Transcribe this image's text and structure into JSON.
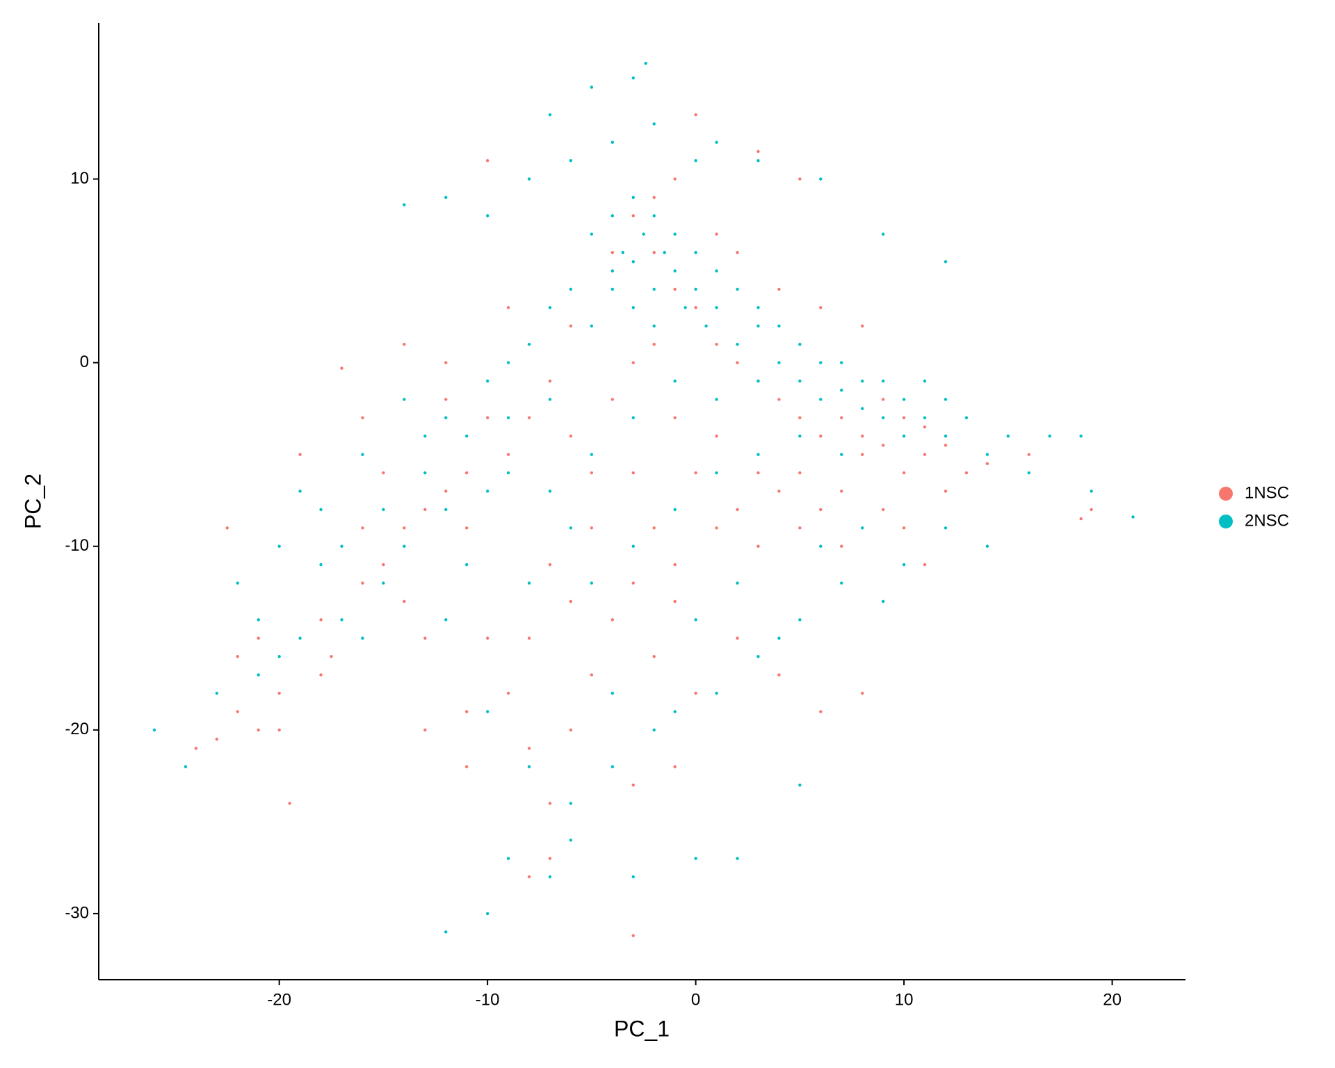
{
  "chart_data": {
    "type": "scatter",
    "x_label": "PC_1",
    "y_label": "PC_2",
    "legend": "right",
    "xlim": [
      -28.67,
      23.52
    ],
    "ylim": [
      -33.6,
      18.5
    ],
    "xticks": [
      -20,
      -10,
      0,
      10,
      20
    ],
    "yticks": [
      -30,
      -20,
      -10,
      0,
      10
    ],
    "series": [
      {
        "name": "1NSC",
        "color": "#F8766D",
        "x": [
          -24,
          -22.5,
          -22,
          -21,
          -20,
          -19.5,
          -19,
          -18,
          -17.5,
          -17,
          -16,
          -15,
          -14,
          -13,
          -12,
          -11,
          -10,
          -9,
          -8,
          -7,
          -8,
          -7,
          -3,
          -5,
          -4,
          -3,
          -2,
          -1,
          0,
          1,
          2,
          3,
          4,
          5,
          6,
          7,
          8,
          9,
          10,
          11,
          12,
          13,
          14,
          15,
          16,
          19,
          18.5,
          -10,
          -5,
          0,
          3,
          5,
          -3,
          -2,
          -4,
          -1,
          0,
          1,
          2,
          3,
          4,
          5,
          6,
          7,
          8,
          9,
          10,
          11,
          12,
          -6,
          -7,
          -8,
          -9,
          -10,
          -11,
          -12,
          -13,
          -14,
          -15,
          -16,
          -18,
          -20,
          -21,
          -22,
          -23,
          -6,
          -5,
          -4,
          -3,
          -2,
          -1,
          1,
          3,
          5,
          7,
          9,
          10,
          11,
          -6,
          -8,
          -2,
          0,
          2,
          4,
          6,
          8,
          -1,
          -3,
          -11,
          -6,
          -4,
          -2,
          -1,
          1,
          2,
          4,
          6,
          8,
          -9,
          -12,
          -14,
          -16,
          -13,
          -11,
          -7,
          -5,
          -3,
          -1
        ],
        "values": [
          -21,
          -9,
          -16,
          -20,
          -18,
          -24,
          -5,
          -14,
          -16,
          -0.3,
          -9,
          -6,
          -13,
          -20,
          -2,
          -9,
          -15,
          -18,
          -21,
          -24,
          -28,
          -27,
          -31.2,
          -17,
          -14,
          -12,
          -9,
          -11,
          -6,
          -9,
          -8,
          -10,
          -7,
          -6,
          -8,
          -7,
          -5,
          -4.5,
          -6,
          -5,
          -7,
          -6,
          -5.5,
          -4,
          -5,
          -8,
          -8.5,
          11,
          15,
          13.5,
          11.5,
          10,
          8,
          6,
          6,
          4,
          3,
          1,
          0,
          -1,
          -2,
          -3,
          -4,
          -3,
          -4,
          -2,
          -3,
          -3.5,
          -4.5,
          2,
          -1,
          -3,
          -5,
          -3,
          -6,
          -7,
          -8,
          -9,
          -11,
          -12,
          -17,
          -20,
          -15,
          -19,
          -20.5,
          -4,
          -6,
          -2,
          0,
          1,
          -3,
          -4,
          -6,
          -9,
          -10,
          -8,
          -9,
          -11,
          -13,
          -15,
          -16,
          -18,
          -15,
          -17,
          -19,
          -18,
          -22,
          -23,
          -22,
          -20,
          5,
          9,
          10,
          7,
          6,
          4,
          3,
          2,
          3,
          0,
          1,
          -3,
          -15,
          -19,
          -11,
          -9,
          -6,
          -13
        ]
      },
      {
        "name": "2NSC",
        "color": "#00BFC4",
        "x": [
          -26,
          -24.5,
          -22,
          -21,
          -20,
          -19,
          -18,
          -17,
          -16,
          -15,
          -14,
          -13,
          -12,
          -11,
          -10,
          -9,
          -8,
          -7,
          -6,
          -5,
          -4,
          -3.5,
          -3,
          -2.5,
          -2,
          -1.5,
          -1,
          -0.5,
          0,
          0.5,
          1,
          2,
          3,
          4,
          5,
          6,
          7,
          8,
          9,
          10,
          11,
          12,
          13,
          14,
          15,
          16,
          17,
          18.5,
          19,
          21,
          -3,
          -5,
          -2.4,
          -7,
          1,
          3,
          6,
          9,
          12,
          -14,
          -12,
          -10,
          -8,
          -6,
          -4,
          -2,
          0,
          -3,
          -4,
          -5,
          -2,
          -1,
          0,
          1,
          2,
          3,
          4,
          5,
          6,
          7,
          8,
          9,
          10,
          11,
          12,
          -3,
          -2,
          -4,
          -6,
          -7,
          -8,
          -9,
          -10,
          -12,
          -13,
          -15,
          -17,
          -19,
          -21,
          -23,
          -20,
          -18,
          -16,
          -14,
          -12,
          -10,
          -8,
          -6,
          -4,
          -2,
          0,
          2,
          4,
          6,
          8,
          10,
          12,
          14,
          -3,
          -7,
          -10,
          -12,
          -9,
          -6,
          0,
          2,
          5,
          -4,
          -1,
          1,
          3,
          5,
          7,
          9,
          -5,
          -3,
          -1,
          1,
          3,
          5,
          7,
          -11,
          -9,
          -7,
          -5,
          -3,
          -1,
          1,
          3
        ],
        "values": [
          -20,
          -22,
          -12,
          -14,
          -16,
          -7,
          -11,
          -10,
          -5,
          -12,
          -2,
          -6,
          -8,
          -4,
          -7,
          -3,
          -12,
          -2,
          -9,
          2,
          5,
          6,
          5.5,
          7,
          4,
          6,
          5,
          3,
          4,
          2,
          3,
          1,
          2,
          0,
          -1,
          -2,
          -1.5,
          -2.5,
          -3,
          -2,
          -3,
          -4,
          -3,
          -5,
          -4,
          -6,
          -4,
          -4,
          -7,
          -8.4,
          15.5,
          15,
          16.3,
          13.5,
          12,
          11,
          10,
          7,
          5.5,
          8.6,
          9,
          8,
          10,
          11,
          12,
          13,
          11,
          9,
          8,
          7,
          8,
          7,
          6,
          5,
          4,
          3,
          2,
          1,
          0,
          0,
          -1,
          -1,
          -4,
          -1,
          -2,
          3,
          2,
          4,
          4,
          3,
          1,
          0,
          -1,
          -3,
          -4,
          -8,
          -14,
          -15,
          -17,
          -18,
          -10,
          -8,
          -15,
          -10,
          -14,
          -19,
          -22,
          -24,
          -18,
          -20,
          -14,
          -12,
          -15,
          -10,
          -9,
          -11,
          -9,
          -10,
          -28,
          -28,
          -30,
          -31,
          -27,
          -26,
          -27,
          -27,
          -23,
          -22,
          -19,
          -18,
          -16,
          -14,
          -12,
          -13,
          -12,
          -10,
          -8,
          -6,
          -5,
          -4,
          -5,
          -11,
          -6,
          -7,
          -5,
          -3,
          -1,
          -2,
          -1
        ]
      }
    ]
  }
}
